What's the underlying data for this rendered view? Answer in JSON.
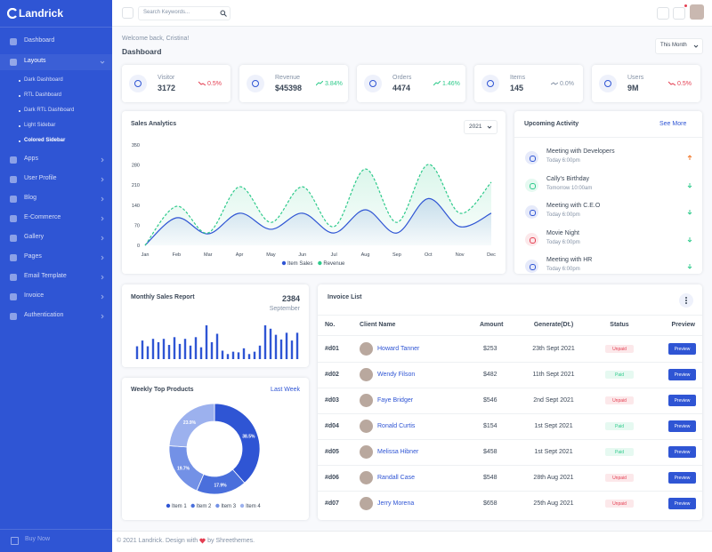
{
  "sidebar": {
    "brand": "Landrick",
    "menu": [
      "Dashboard",
      "Layouts",
      "Apps",
      "User Profile",
      "Blog",
      "E-Commerce",
      "Gallery",
      "Pages",
      "Email Template",
      "Invoice",
      "Authentication"
    ],
    "submenu": [
      "Dark Dashboard",
      "RTL Dashboard",
      "Dark RTL Dashboard",
      "Light Sidebar",
      "Colored Sidebar"
    ],
    "footer": "Buy Now"
  },
  "topbar": {
    "search": "Search Keywords..."
  },
  "header": {
    "greeting": "Welcome back, Cristina!",
    "title": "Dashboard",
    "filter": "This Month"
  },
  "stats": [
    {
      "label": "Visitor",
      "value": "3172",
      "change": "0.5%",
      "trend": "down",
      "color": "#e43f52"
    },
    {
      "label": "Revenue",
      "value": "$45398",
      "change": "3.84%",
      "trend": "up",
      "color": "#2eca8b"
    },
    {
      "label": "Orders",
      "value": "4474",
      "change": "1.46%",
      "trend": "up",
      "color": "#2eca8b"
    },
    {
      "label": "Items",
      "value": "145",
      "change": "0.0%",
      "trend": "flat",
      "color": "#8492a6"
    },
    {
      "label": "Users",
      "value": "9M",
      "change": "0.5%",
      "trend": "down",
      "color": "#e43f52"
    }
  ],
  "activity": {
    "title": "Upcoming Activity",
    "link": "See More",
    "items": [
      {
        "title": "Meeting with Developers",
        "time": "Today 6:00pm",
        "color": "#2f55d4",
        "arrow": "up",
        "arrow_color": "#f17425"
      },
      {
        "title": "Cally's Birthday",
        "time": "Tomorrow 10:00am",
        "color": "#2eca8b",
        "arrow": "down",
        "arrow_color": "#2eca8b"
      },
      {
        "title": "Meeting with C.E.O",
        "time": "Today 6:00pm",
        "color": "#2f55d4",
        "arrow": "down",
        "arrow_color": "#2eca8b"
      },
      {
        "title": "Movie Night",
        "time": "Today 6:00pm",
        "color": "#e43f52",
        "arrow": "down",
        "arrow_color": "#2eca8b"
      },
      {
        "title": "Meeting with HR",
        "time": "Today 6:00pm",
        "color": "#2f55d4",
        "arrow": "down",
        "arrow_color": "#2eca8b"
      }
    ]
  },
  "invoices": {
    "title": "Invoice List",
    "columns": [
      "No.",
      "Client Name",
      "Amount",
      "Generate(Dt.)",
      "Status",
      "Preview"
    ],
    "rows": [
      {
        "no": "#d01",
        "client": "Howard Tanner",
        "amount": "$253",
        "date": "23th Sept 2021",
        "status": "Unpaid",
        "status_color": "#e43f52",
        "action": "Preview"
      },
      {
        "no": "#d02",
        "client": "Wendy Filson",
        "amount": "$482",
        "date": "11th Sept 2021",
        "status": "Paid",
        "status_color": "#2eca8b",
        "action": "Preview"
      },
      {
        "no": "#d03",
        "client": "Faye Bridger",
        "amount": "$546",
        "date": "2nd Sept 2021",
        "status": "Unpaid",
        "status_color": "#e43f52",
        "action": "Preview"
      },
      {
        "no": "#d04",
        "client": "Ronald Curtis",
        "amount": "$154",
        "date": "1st Sept 2021",
        "status": "Paid",
        "status_color": "#2eca8b",
        "action": "Preview"
      },
      {
        "no": "#d05",
        "client": "Melissa Hibner",
        "amount": "$458",
        "date": "1st Sept 2021",
        "status": "Paid",
        "status_color": "#2eca8b",
        "action": "Preview"
      },
      {
        "no": "#d06",
        "client": "Randall Case",
        "amount": "$548",
        "date": "28th Aug 2021",
        "status": "Unpaid",
        "status_color": "#e43f52",
        "action": "Preview"
      },
      {
        "no": "#d07",
        "client": "Jerry Morena",
        "amount": "$658",
        "date": "25th Aug 2021",
        "status": "Unpaid",
        "status_color": "#e43f52",
        "action": "Preview"
      }
    ]
  },
  "footer": {
    "copyright": "© 2021 Landrick. Design with",
    "credit": "by Shreethemes."
  },
  "chart_data": [
    {
      "type": "line",
      "title": "Sales Analytics",
      "filter": "2021",
      "categories": [
        "Jan",
        "Feb",
        "Mar",
        "Apr",
        "May",
        "Jun",
        "Jul",
        "Aug",
        "Sep",
        "Oct",
        "Nov",
        "Dec"
      ],
      "series": [
        {
          "name": "Item Sales",
          "color": "#2f55d4",
          "dashed": false,
          "values": [
            0,
            96,
            40,
            112,
            56,
            112,
            43,
            124,
            43,
            163,
            65,
            112
          ]
        },
        {
          "name": "Revenue",
          "color": "#2eca8b",
          "dashed": true,
          "values": [
            0,
            136,
            43,
            204,
            80,
            204,
            65,
            266,
            80,
            282,
            112,
            220
          ]
        }
      ],
      "ylim": [
        0,
        350
      ],
      "yticks": [
        0,
        70,
        140,
        210,
        280,
        350
      ],
      "grid": false
    },
    {
      "type": "bar",
      "title": "Monthly Sales Report",
      "total": 2384,
      "subtitle": "September",
      "color": "#2f55d4",
      "values": [
        38,
        55,
        38,
        60,
        50,
        60,
        42,
        65,
        45,
        60,
        40,
        65,
        35,
        100,
        50,
        75,
        25,
        15,
        22,
        20,
        32,
        15,
        22,
        40,
        100,
        90,
        72,
        58,
        78,
        55,
        78
      ],
      "ylim": [
        0,
        100
      ]
    },
    {
      "type": "pie",
      "title": "Weekly Top Products",
      "link": "Last Week",
      "donut": true,
      "categories": [
        "Item 1",
        "Item 2",
        "Item 3",
        "Item 4"
      ],
      "values": [
        38.5,
        17.9,
        19.7,
        23.9
      ],
      "value_labels": [
        "38.5%",
        "17.9%",
        "19.7%",
        "23.9%"
      ],
      "colors": [
        "#2f55d4",
        "#4a6fdc",
        "#7391e6",
        "#9cb1ee"
      ]
    }
  ]
}
